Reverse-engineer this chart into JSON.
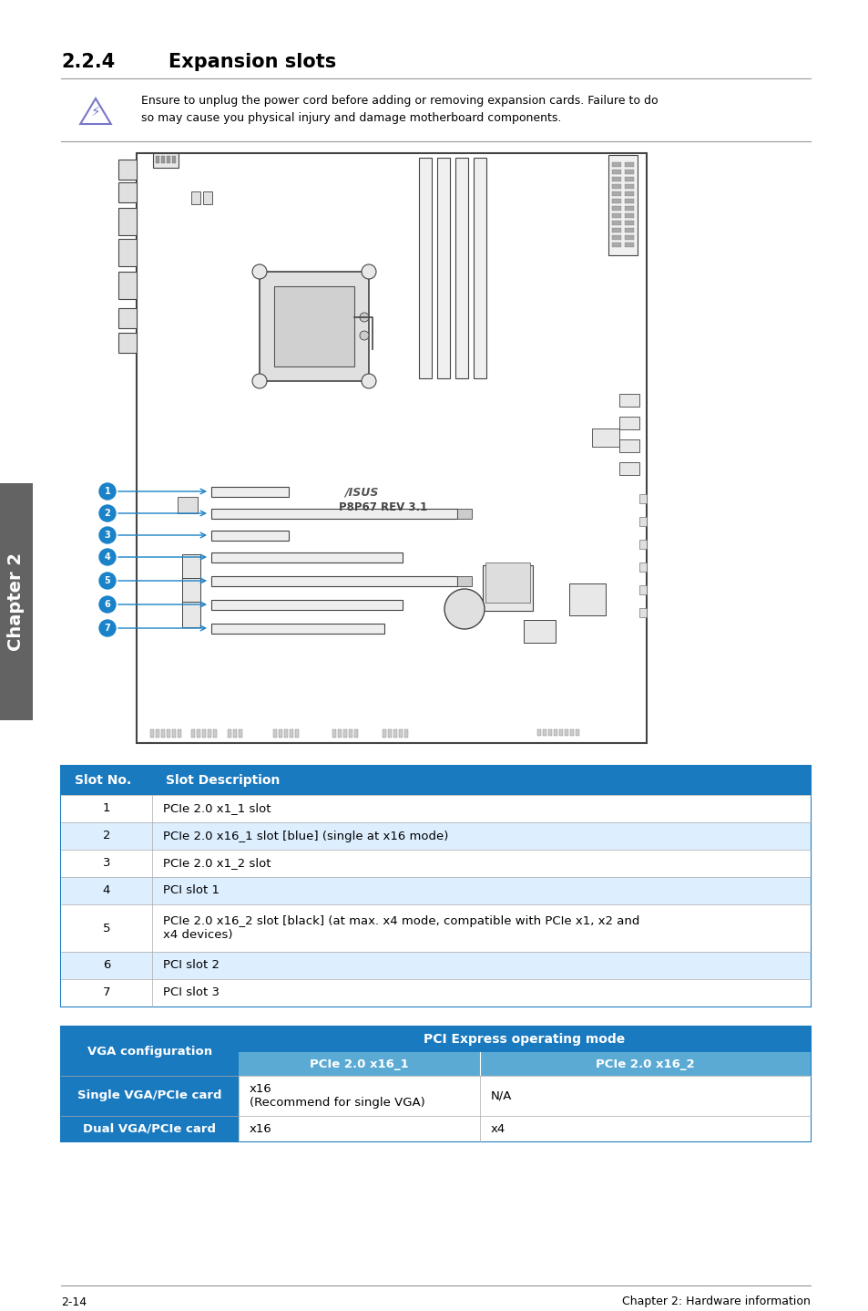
{
  "page_bg": "#ffffff",
  "title_number": "2.2.4",
  "title_text": "Expansion slots",
  "title_color": "#000000",
  "warning_text": "Ensure to unplug the power cord before adding or removing expansion cards. Failure to do\nso may cause you physical injury and damage motherboard components.",
  "table1_header_bg": "#1a7abf",
  "table1_header_text_color": "#ffffff",
  "table1_row_bg_odd": "#ffffff",
  "table1_row_bg_even": "#ddeeff",
  "table1_border_color": "#1a7abf",
  "table1_header": [
    "Slot No.",
    "Slot Description"
  ],
  "table1_rows": [
    [
      "1",
      "PCIe 2.0 x1_1 slot"
    ],
    [
      "2",
      "PCIe 2.0 x16_1 slot [blue] (single at x16 mode)"
    ],
    [
      "3",
      "PCIe 2.0 x1_2 slot"
    ],
    [
      "4",
      "PCI slot 1"
    ],
    [
      "5",
      "PCIe 2.0 x16_2 slot [black] (at max. x4 mode, compatible with PCIe x1, x2 and\nx4 devices)"
    ],
    [
      "6",
      "PCI slot 2"
    ],
    [
      "7",
      "PCI slot 3"
    ]
  ],
  "table2_header_bg": "#1a7abf",
  "table2_header_text_color": "#ffffff",
  "table2_subheader_bg": "#5aaad4",
  "table2_border_color": "#1a7abf",
  "table2_col1_header": "VGA configuration",
  "table2_pci_header": "PCI Express operating mode",
  "table2_sub_col1": "PCIe 2.0 x16_1",
  "table2_sub_col2": "PCIe 2.0 x16_2",
  "table2_rows": [
    [
      "Single VGA/PCIe card",
      "x16\n(Recommend for single VGA)",
      "N/A"
    ],
    [
      "Dual VGA/PCIe card",
      "x16",
      "x4"
    ]
  ],
  "sidebar_text": "Chapter 2",
  "sidebar_bg": "#636363",
  "sidebar_text_color": "#ffffff",
  "footer_left": "2-14",
  "footer_right": "Chapter 2: Hardware information"
}
